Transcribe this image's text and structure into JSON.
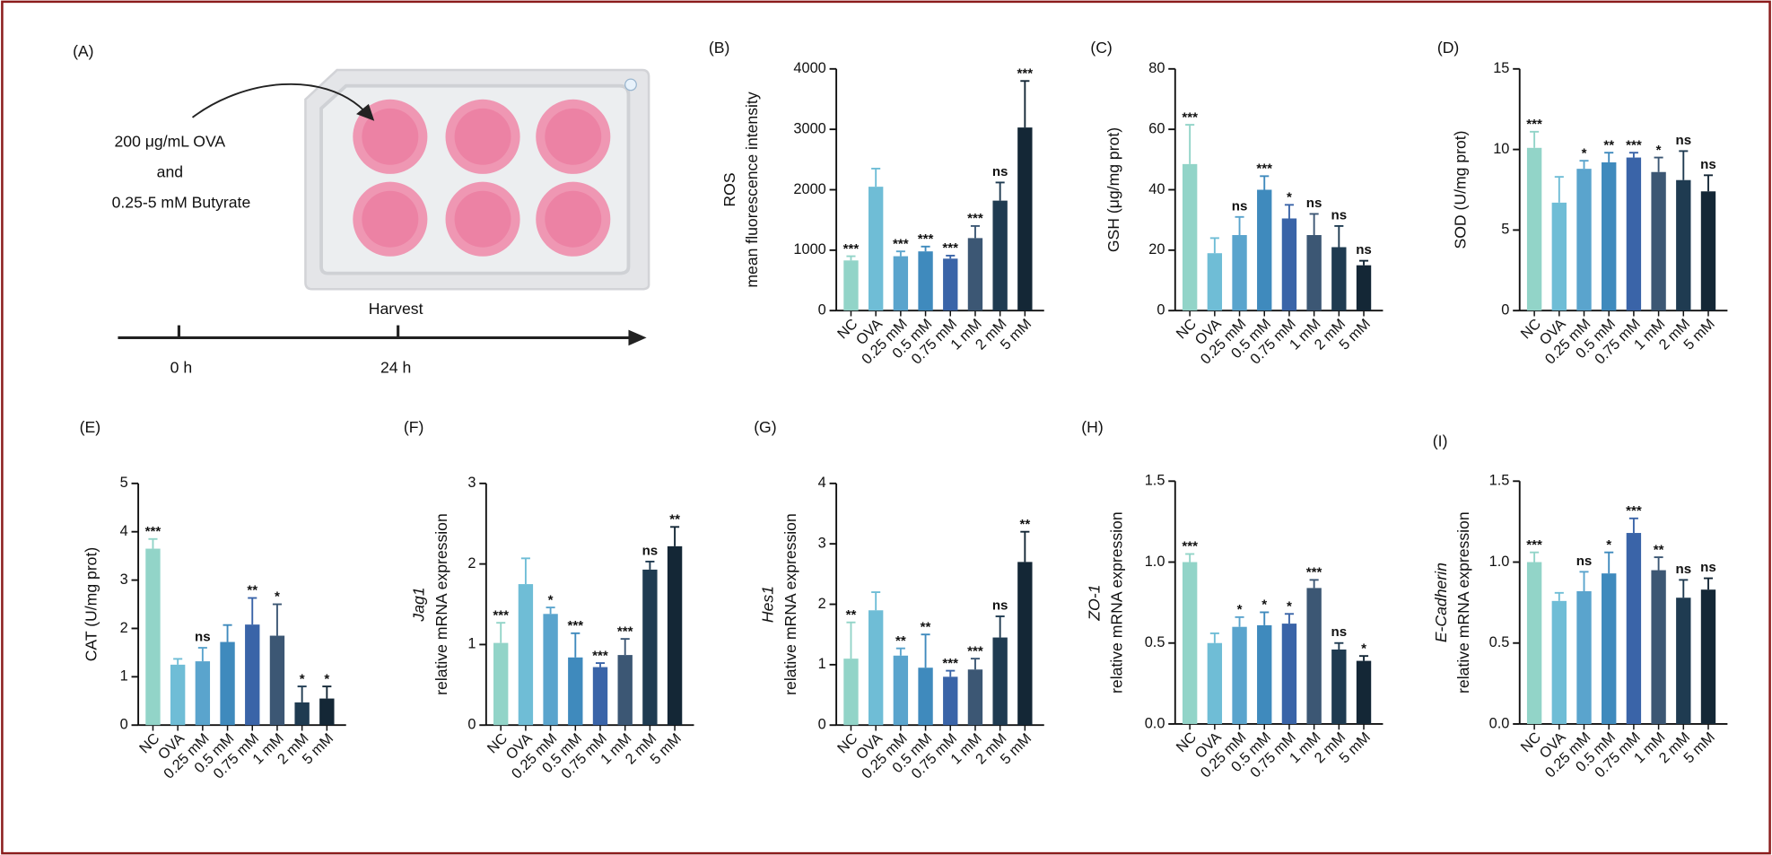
{
  "schematic": {
    "panel": "(A)",
    "treatment": [
      "200 μg/mL OVA",
      "and",
      "0.25-5 mM Butyrate"
    ],
    "event": "Harvest",
    "times": [
      "0 h",
      "24 h"
    ]
  },
  "chart_data": [
    {
      "type": "bar",
      "panel": "(B)",
      "ylabel": [
        "ROS",
        "mean fluorescence intensity"
      ],
      "gene_italic": false,
      "categories": [
        "NC",
        "OVA",
        "0.25 mM",
        "0.5 mM",
        "0.75 mM",
        "1 mM",
        "2 mM",
        "5 mM"
      ],
      "colors": [
        "#92d4c8",
        "#6fbdd6",
        "#5aa4cd",
        "#3f8abd",
        "#3a64a8",
        "#3c5774",
        "#1f3b51",
        "#142736"
      ],
      "values": [
        830,
        2050,
        900,
        980,
        860,
        1200,
        1820,
        3030
      ],
      "errors": [
        70,
        300,
        80,
        80,
        50,
        200,
        300,
        770
      ],
      "significance": [
        "***",
        null,
        "***",
        "***",
        "***",
        "***",
        "ns",
        "***"
      ],
      "ylim": [
        0,
        4000
      ],
      "yticks": [
        0,
        1000,
        2000,
        3000,
        4000
      ]
    },
    {
      "type": "bar",
      "panel": "(C)",
      "ylabel": [
        "GSH (μg/mg prot)"
      ],
      "gene_italic": false,
      "categories": [
        "NC",
        "OVA",
        "0.25 mM",
        "0.5 mM",
        "0.75 mM",
        "1 mM",
        "2 mM",
        "5 mM"
      ],
      "colors": [
        "#92d4c8",
        "#6fbdd6",
        "#5aa4cd",
        "#3f8abd",
        "#3a64a8",
        "#3c5774",
        "#1f3b51",
        "#142736"
      ],
      "values": [
        48.5,
        19,
        25,
        40,
        30.5,
        25,
        21,
        15
      ],
      "errors": [
        13,
        5,
        6,
        4.5,
        4.5,
        7,
        7,
        1.5
      ],
      "significance": [
        "***",
        null,
        "ns",
        "***",
        "*",
        "ns",
        "ns",
        "ns"
      ],
      "ylim": [
        0,
        80
      ],
      "yticks": [
        0,
        20,
        40,
        60,
        80
      ]
    },
    {
      "type": "bar",
      "panel": "(D)",
      "ylabel": [
        "SOD (U/mg prot)"
      ],
      "gene_italic": false,
      "categories": [
        "NC",
        "OVA",
        "0.25 mM",
        "0.5 mM",
        "0.75 mM",
        "1 mM",
        "2 mM",
        "5 mM"
      ],
      "colors": [
        "#92d4c8",
        "#6fbdd6",
        "#5aa4cd",
        "#3f8abd",
        "#3a64a8",
        "#3c5774",
        "#1f3b51",
        "#142736"
      ],
      "values": [
        10.1,
        6.7,
        8.8,
        9.2,
        9.5,
        8.6,
        8.1,
        7.4
      ],
      "errors": [
        1,
        1.6,
        0.5,
        0.6,
        0.3,
        0.9,
        1.8,
        1
      ],
      "significance": [
        "***",
        null,
        "*",
        "**",
        "***",
        "*",
        "ns",
        "ns"
      ],
      "ylim": [
        0,
        15
      ],
      "yticks": [
        0,
        5,
        10,
        15
      ]
    },
    {
      "type": "bar",
      "panel": "(E)",
      "ylabel": [
        "CAT (U/mg prot)"
      ],
      "gene_italic": false,
      "categories": [
        "NC",
        "OVA",
        "0.25 mM",
        "0.5 mM",
        "0.75 mM",
        "1 mM",
        "2 mM",
        "5 mM"
      ],
      "colors": [
        "#92d4c8",
        "#6fbdd6",
        "#5aa4cd",
        "#3f8abd",
        "#3a64a8",
        "#3c5774",
        "#1f3b51",
        "#142736"
      ],
      "values": [
        3.65,
        1.25,
        1.32,
        1.72,
        2.08,
        1.85,
        0.47,
        0.55
      ],
      "errors": [
        0.2,
        0.12,
        0.28,
        0.35,
        0.55,
        0.65,
        0.33,
        0.25
      ],
      "significance": [
        "***",
        null,
        "ns",
        null,
        "**",
        "*",
        "*",
        "*"
      ],
      "ylim": [
        0,
        5
      ],
      "yticks": [
        0,
        1,
        2,
        3,
        4,
        5
      ]
    },
    {
      "type": "bar",
      "panel": "(F)",
      "ylabel": [
        "Jag1",
        "relative mRNA expression"
      ],
      "gene_italic": true,
      "categories": [
        "NC",
        "OVA",
        "0.25 mM",
        "0.5 mM",
        "0.75 mM",
        "1 mM",
        "2 mM",
        "5 mM"
      ],
      "colors": [
        "#92d4c8",
        "#6fbdd6",
        "#5aa4cd",
        "#3f8abd",
        "#3a64a8",
        "#3c5774",
        "#1f3b51",
        "#142736"
      ],
      "values": [
        1.02,
        1.75,
        1.38,
        0.84,
        0.72,
        0.87,
        1.93,
        2.22
      ],
      "errors": [
        0.25,
        0.32,
        0.08,
        0.3,
        0.05,
        0.2,
        0.1,
        0.24
      ],
      "significance": [
        "***",
        null,
        "*",
        "***",
        "***",
        "***",
        "ns",
        "**"
      ],
      "ylim": [
        0,
        3
      ],
      "yticks": [
        0,
        1,
        2,
        3
      ]
    },
    {
      "type": "bar",
      "panel": "(G)",
      "ylabel": [
        "Hes1",
        "relative mRNA expression"
      ],
      "gene_italic": true,
      "categories": [
        "NC",
        "OVA",
        "0.25 mM",
        "0.5 mM",
        "0.75 mM",
        "1 mM",
        "2 mM",
        "5 mM"
      ],
      "colors": [
        "#92d4c8",
        "#6fbdd6",
        "#5aa4cd",
        "#3f8abd",
        "#3a64a8",
        "#3c5774",
        "#1f3b51",
        "#142736"
      ],
      "values": [
        1.1,
        1.9,
        1.15,
        0.95,
        0.8,
        0.92,
        1.45,
        2.7
      ],
      "errors": [
        0.6,
        0.3,
        0.12,
        0.55,
        0.1,
        0.18,
        0.35,
        0.5
      ],
      "significance": [
        "**",
        null,
        "**",
        "**",
        "***",
        "***",
        "ns",
        "**"
      ],
      "ylim": [
        0,
        4
      ],
      "yticks": [
        0,
        1,
        2,
        3,
        4
      ]
    },
    {
      "type": "bar",
      "panel": "(H)",
      "ylabel": [
        "ZO-1",
        "relative mRNA expression"
      ],
      "gene_italic": true,
      "categories": [
        "NC",
        "OVA",
        "0.25 mM",
        "0.5 mM",
        "0.75 mM",
        "1 mM",
        "2 mM",
        "5 mM"
      ],
      "colors": [
        "#92d4c8",
        "#6fbdd6",
        "#5aa4cd",
        "#3f8abd",
        "#3a64a8",
        "#3c5774",
        "#1f3b51",
        "#142736"
      ],
      "values": [
        1.0,
        0.5,
        0.6,
        0.61,
        0.62,
        0.84,
        0.46,
        0.39
      ],
      "errors": [
        0.05,
        0.06,
        0.06,
        0.08,
        0.06,
        0.05,
        0.04,
        0.03
      ],
      "significance": [
        "***",
        null,
        "*",
        "*",
        "*",
        "***",
        "ns",
        "*"
      ],
      "ylim": [
        0,
        1.5
      ],
      "yticks": [
        {
          "value": 0,
          "label": "0.0"
        },
        0.5,
        {
          "value": 1,
          "label": "1.0"
        },
        1.5
      ]
    },
    {
      "type": "bar",
      "panel": "(I)",
      "ylabel": [
        "E-Cadherin",
        "relative mRNA expression"
      ],
      "gene_italic": true,
      "categories": [
        "NC",
        "OVA",
        "0.25 mM",
        "0.5 mM",
        "0.75 mM",
        "1 mM",
        "2 mM",
        "5 mM"
      ],
      "colors": [
        "#92d4c8",
        "#6fbdd6",
        "#5aa4cd",
        "#3f8abd",
        "#3a64a8",
        "#3c5774",
        "#1f3b51",
        "#142736"
      ],
      "values": [
        1.0,
        0.76,
        0.82,
        0.93,
        1.18,
        0.95,
        0.78,
        0.83
      ],
      "errors": [
        0.06,
        0.05,
        0.12,
        0.13,
        0.09,
        0.08,
        0.11,
        0.07
      ],
      "significance": [
        "***",
        null,
        "ns",
        "*",
        "***",
        "**",
        "ns",
        "ns"
      ],
      "ylim": [
        0,
        1.5
      ],
      "yticks": [
        {
          "value": 0,
          "label": "0.0"
        },
        0.5,
        {
          "value": 1,
          "label": "1.0"
        },
        1.5
      ]
    }
  ]
}
